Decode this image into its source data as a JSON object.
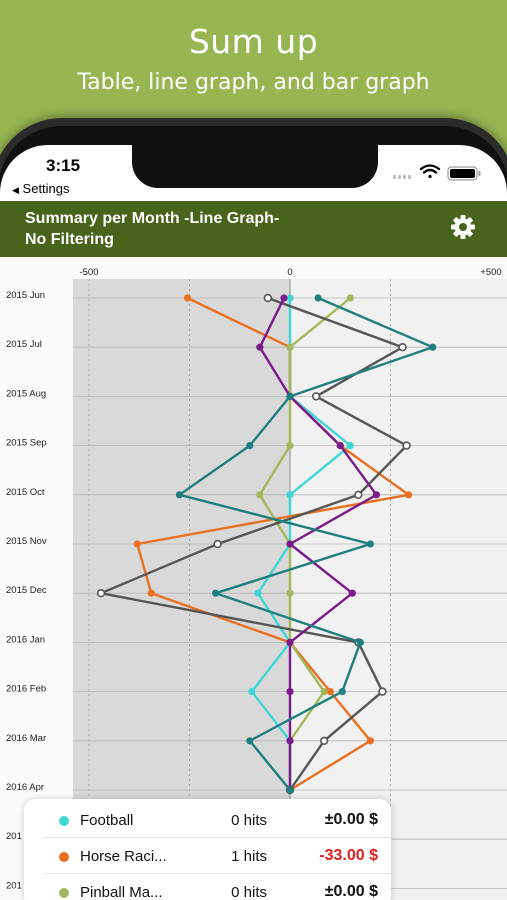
{
  "promo": {
    "title": "Sum up",
    "subtitle": "Table, line graph, and bar graph"
  },
  "status_bar": {
    "time": "3:15",
    "back_label": "Settings"
  },
  "nav": {
    "title_line1": "Summary per Month -Line Graph-",
    "title_line2": "No Filtering"
  },
  "chart_data": {
    "type": "line",
    "orientation": "vertical-time-axis",
    "x_tick_labels": [
      "-500",
      "0",
      "+500"
    ],
    "xlim": [
      -540,
      500
    ],
    "months": [
      "2015 Jun",
      "2015 Jul",
      "2015 Aug",
      "2015 Sep",
      "2015 Oct",
      "2015 Nov",
      "2015 Dec",
      "2016 Jan",
      "2016 Feb",
      "2016 Mar",
      "2016 Apr",
      "201",
      "201"
    ],
    "series": [
      {
        "name": "Football",
        "color": "#3fd6d6",
        "values": [
          0,
          0,
          0,
          150,
          0,
          0,
          -80,
          0,
          -95,
          0,
          0
        ]
      },
      {
        "name": "Horse Racing",
        "color": "#e87020",
        "values": [
          -255,
          0,
          0,
          125,
          295,
          -380,
          -345,
          0,
          100,
          200,
          0
        ]
      },
      {
        "name": "Pinball Machine",
        "color": "#a3b85a",
        "values": [
          150,
          0,
          0,
          0,
          -75,
          0,
          0,
          0,
          85,
          0,
          0
        ]
      },
      {
        "color": "#555555",
        "values": [
          -55,
          280,
          65,
          290,
          170,
          -180,
          -470,
          170,
          230,
          85,
          0
        ]
      },
      {
        "color": "#7b1a8a",
        "values": [
          -15,
          -75,
          0,
          125,
          215,
          0,
          155,
          0,
          0,
          0,
          0
        ]
      },
      {
        "color": "#1f7f7f",
        "values": [
          70,
          355,
          0,
          -100,
          -275,
          200,
          -185,
          175,
          130,
          -100,
          0
        ]
      }
    ]
  },
  "legend": [
    {
      "name": "Football",
      "hits": "0 hits",
      "amount": "±0.00 $",
      "color": "#3fd6d6",
      "amount_color": "#111111"
    },
    {
      "name": "Horse Raci...",
      "hits": "1 hits",
      "amount": "-33.00 $",
      "color": "#e87020",
      "amount_color": "#e02020"
    },
    {
      "name": "Pinball Ma...",
      "hits": "0 hits",
      "amount": "±0.00 $",
      "color": "#a3b85a",
      "amount_color": "#111111"
    }
  ]
}
